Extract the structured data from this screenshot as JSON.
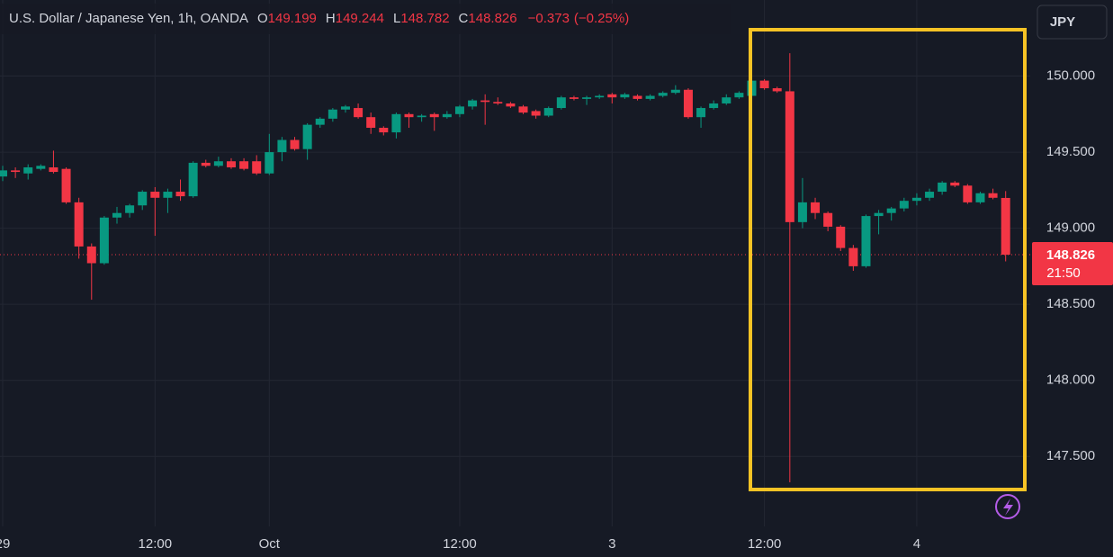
{
  "header": {
    "symbol": "U.S. Dollar / Japanese Yen, 1h, OANDA",
    "ohlc_labels": [
      "O",
      "H",
      "L",
      "C"
    ],
    "change": "−0.373",
    "change_pct": "(−0.25%)",
    "currency": "JPY",
    "countdown": "21:50"
  },
  "chart_data": {
    "type": "candlestick",
    "categories": [
      "29",
      null,
      null,
      null,
      null,
      null,
      null,
      null,
      null,
      null,
      null,
      null,
      "12:00",
      null,
      null,
      null,
      null,
      null,
      null,
      null,
      null,
      "Oct",
      null,
      null,
      null,
      null,
      null,
      null,
      null,
      null,
      null,
      null,
      null,
      null,
      null,
      null,
      "12:00",
      null,
      null,
      null,
      null,
      null,
      null,
      null,
      null,
      null,
      null,
      null,
      "3",
      null,
      null,
      null,
      null,
      null,
      null,
      null,
      null,
      null,
      null,
      null,
      "12:00",
      null,
      null,
      null,
      null,
      null,
      null,
      null,
      null,
      null,
      null,
      null,
      "4",
      null,
      null,
      null,
      null,
      null,
      null,
      null
    ],
    "open": [
      149.34,
      149.38,
      149.36,
      149.39,
      149.4,
      149.39,
      149.17,
      148.88,
      148.77,
      149.07,
      149.1,
      149.15,
      149.24,
      149.2,
      149.24,
      149.21,
      149.43,
      149.41,
      149.44,
      149.44,
      149.44,
      149.36,
      149.5,
      149.58,
      149.52,
      149.68,
      149.72,
      149.78,
      149.79,
      149.73,
      149.66,
      149.63,
      149.75,
      149.73,
      149.75,
      149.73,
      149.75,
      149.8,
      149.84,
      149.83,
      149.82,
      149.8,
      149.77,
      149.74,
      149.79,
      149.86,
      149.85,
      149.86,
      149.88,
      149.86,
      149.87,
      149.85,
      149.87,
      149.89,
      149.91,
      149.73,
      149.79,
      149.82,
      149.86,
      149.87,
      149.97,
      149.92,
      149.9,
      149.04,
      149.17,
      149.1,
      149.01,
      148.87,
      148.75,
      149.08,
      149.1,
      149.13,
      149.18,
      149.2,
      149.24,
      149.3,
      149.28,
      149.17,
      149.23,
      149.199
    ],
    "high": [
      149.41,
      149.4,
      149.42,
      149.42,
      149.51,
      149.4,
      149.2,
      148.9,
      149.08,
      149.14,
      149.16,
      149.25,
      149.27,
      149.26,
      149.32,
      149.44,
      149.45,
      149.47,
      149.46,
      149.46,
      149.48,
      149.62,
      149.6,
      149.6,
      149.69,
      149.73,
      149.79,
      149.81,
      149.82,
      149.76,
      149.67,
      149.76,
      149.76,
      149.75,
      149.76,
      149.77,
      149.81,
      149.85,
      149.88,
      149.86,
      149.83,
      149.81,
      149.78,
      149.8,
      149.87,
      149.87,
      149.87,
      149.88,
      149.89,
      149.89,
      149.88,
      149.88,
      149.9,
      149.94,
      149.92,
      149.8,
      149.84,
      149.88,
      149.9,
      149.98,
      149.98,
      149.93,
      150.15,
      149.33,
      149.2,
      149.11,
      149.02,
      148.89,
      149.09,
      149.12,
      149.14,
      149.2,
      149.23,
      149.26,
      149.31,
      149.31,
      149.29,
      149.24,
      149.26,
      149.244
    ],
    "low": [
      149.31,
      149.33,
      149.32,
      149.38,
      149.36,
      149.16,
      148.8,
      148.53,
      148.76,
      149.03,
      149.07,
      149.12,
      148.95,
      149.1,
      149.18,
      149.2,
      149.4,
      149.4,
      149.39,
      149.38,
      149.35,
      149.35,
      149.44,
      149.51,
      149.45,
      149.66,
      149.7,
      149.76,
      149.72,
      149.62,
      149.61,
      149.59,
      149.66,
      149.7,
      149.64,
      149.72,
      149.73,
      149.78,
      149.68,
      149.81,
      149.79,
      149.75,
      149.72,
      149.73,
      149.78,
      149.84,
      149.81,
      149.85,
      149.82,
      149.85,
      149.84,
      149.84,
      149.86,
      149.88,
      149.72,
      149.66,
      149.78,
      149.81,
      149.85,
      149.86,
      149.91,
      149.89,
      147.33,
      149.0,
      149.06,
      148.98,
      148.85,
      148.72,
      148.74,
      148.96,
      149.05,
      149.11,
      149.15,
      149.18,
      149.22,
      149.27,
      149.16,
      149.16,
      149.19,
      148.782
    ],
    "close": [
      149.38,
      149.37,
      149.4,
      149.41,
      149.37,
      149.17,
      148.88,
      148.77,
      149.07,
      149.1,
      149.15,
      149.24,
      149.2,
      149.24,
      149.21,
      149.43,
      149.41,
      149.44,
      149.4,
      149.39,
      149.36,
      149.5,
      149.58,
      149.52,
      149.68,
      149.72,
      149.78,
      149.8,
      149.73,
      149.66,
      149.63,
      149.75,
      149.73,
      149.74,
      149.73,
      149.75,
      149.8,
      149.84,
      149.83,
      149.82,
      149.8,
      149.76,
      149.74,
      149.79,
      149.86,
      149.85,
      149.86,
      149.87,
      149.86,
      149.88,
      149.85,
      149.87,
      149.89,
      149.91,
      149.73,
      149.79,
      149.82,
      149.86,
      149.89,
      149.97,
      149.92,
      149.9,
      149.04,
      149.17,
      149.1,
      149.01,
      148.87,
      148.75,
      149.08,
      149.1,
      149.13,
      149.18,
      149.2,
      149.24,
      149.3,
      149.28,
      149.17,
      149.23,
      149.2,
      148.826
    ],
    "up_color": "#089981",
    "down_color": "#f23645",
    "ylim": [
      147.04,
      150.5
    ],
    "yticks": [
      {
        "value": 147.5,
        "label": "147.500"
      },
      {
        "value": 148,
        "label": "148.000"
      },
      {
        "value": 148.5,
        "label": "148.500"
      },
      {
        "value": 149,
        "label": "149.000"
      },
      {
        "value": 149.5,
        "label": "149.500"
      },
      {
        "value": 150,
        "label": "150.000"
      }
    ],
    "grid": true
  }
}
